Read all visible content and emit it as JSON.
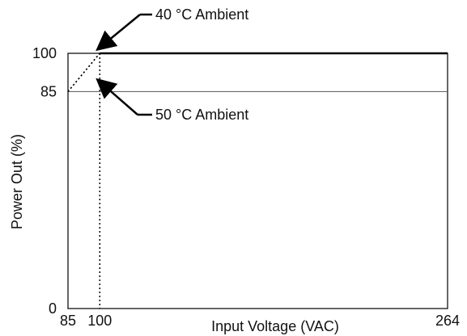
{
  "chart_data": {
    "type": "line",
    "xlabel": "Input Voltage (VAC)",
    "ylabel": "Power Out (%)",
    "xlim": [
      85,
      264
    ],
    "ylim": [
      0,
      100
    ],
    "x_ticks": [
      "85",
      "100",
      "264"
    ],
    "y_ticks": [
      "0",
      "85",
      "100"
    ],
    "grid": false,
    "series": [
      {
        "name": "40 °C Ambient",
        "style": "solid",
        "points": [
          [
            85,
            85
          ],
          [
            100,
            100
          ],
          [
            264,
            100
          ]
        ]
      },
      {
        "name": "50 °C Ambient",
        "style": "dotted",
        "points": [
          [
            85,
            85
          ],
          [
            100,
            100
          ],
          [
            264,
            100
          ]
        ]
      }
    ],
    "reference_lines": [
      {
        "axis": "x",
        "value": 100,
        "style": "dotted"
      }
    ],
    "annotations": [
      {
        "text": "40 °C Ambient",
        "series": 0
      },
      {
        "text": "50 °C Ambient",
        "series": 1
      }
    ],
    "colors": {
      "line": "#000000",
      "secondary_line": "#555555"
    }
  }
}
